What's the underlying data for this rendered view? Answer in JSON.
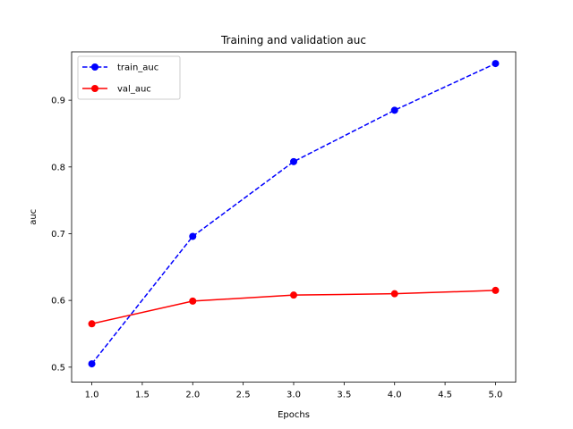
{
  "chart_data": {
    "type": "line",
    "title": "Training and validation auc",
    "xlabel": "Epochs",
    "ylabel": "auc",
    "xlim": [
      0.8,
      5.2
    ],
    "ylim": [
      0.4775,
      0.9725
    ],
    "x_ticks": [
      1.0,
      1.5,
      2.0,
      2.5,
      3.0,
      3.5,
      4.0,
      4.5,
      5.0
    ],
    "x_tick_labels": [
      "1.0",
      "1.5",
      "2.0",
      "2.5",
      "3.0",
      "3.5",
      "4.0",
      "4.5",
      "5.0"
    ],
    "y_ticks": [
      0.5,
      0.6,
      0.7,
      0.8,
      0.9
    ],
    "y_tick_labels": [
      "0.5",
      "0.6",
      "0.7",
      "0.8",
      "0.9"
    ],
    "grid": false,
    "legend_position": "upper-left",
    "series": [
      {
        "name": "train_auc",
        "x": [
          1,
          2,
          3,
          4,
          5
        ],
        "values": [
          0.505,
          0.696,
          0.808,
          0.885,
          0.955
        ],
        "color": "#0000ff",
        "line_style": "dashed",
        "marker": "circle"
      },
      {
        "name": "val_auc",
        "x": [
          1,
          2,
          3,
          4,
          5
        ],
        "values": [
          0.565,
          0.599,
          0.608,
          0.61,
          0.615
        ],
        "color": "#ff0000",
        "line_style": "solid",
        "marker": "circle"
      }
    ]
  }
}
